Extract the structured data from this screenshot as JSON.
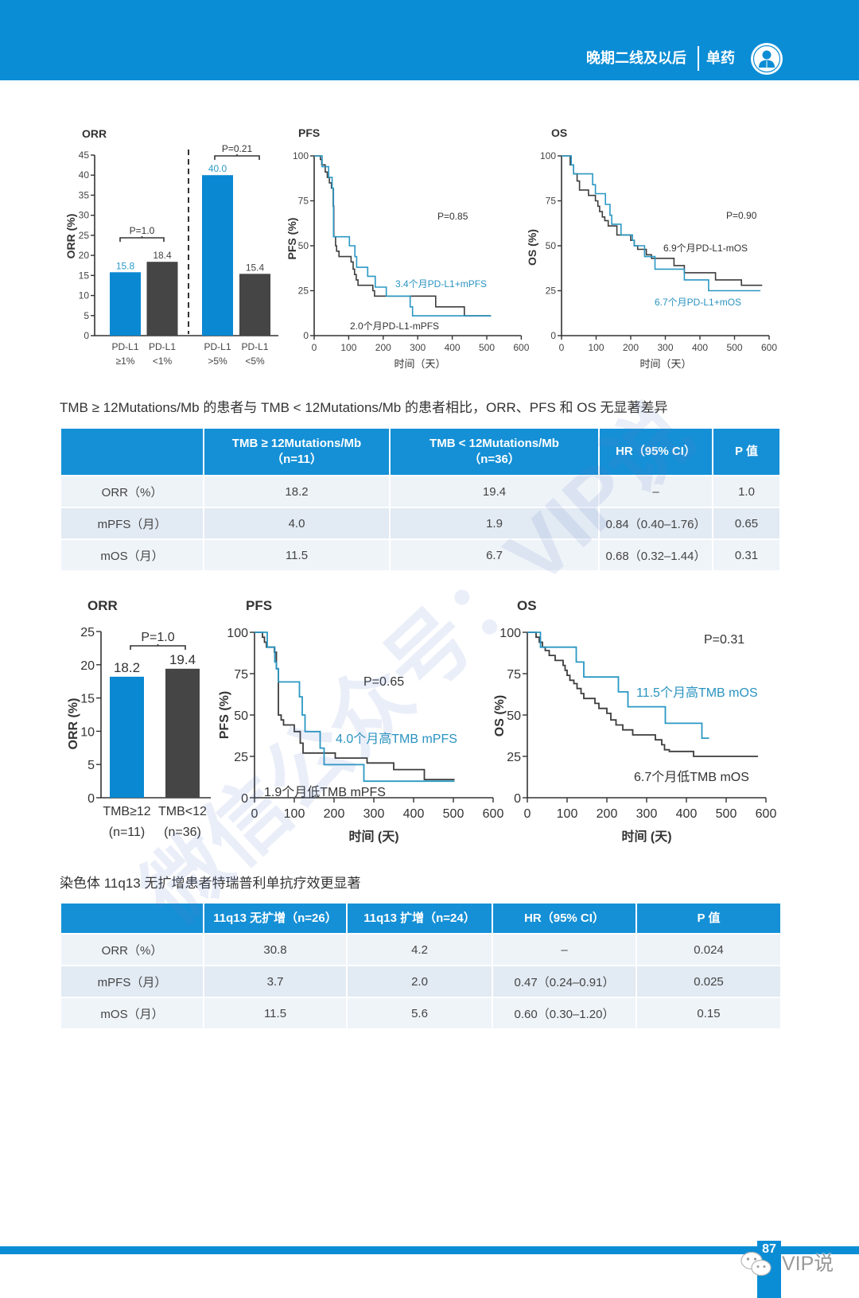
{
  "header": {
    "section": "晚期二线及以后",
    "subsection": "单药",
    "icon": "person-icon",
    "color": "#0b8dd5"
  },
  "chart_data": [
    {
      "type": "bar",
      "title": "ORR",
      "ylabel": "ORR (%)",
      "ylim": [
        0,
        45
      ],
      "yticks": [
        0,
        5,
        10,
        15,
        20,
        25,
        30,
        35,
        40,
        45
      ],
      "categories": [
        [
          "PD-L1",
          "≥1%"
        ],
        [
          "PD-L1",
          "<1%"
        ],
        [
          "PD-L1",
          ">5%"
        ],
        [
          "PD-L1",
          "<5%"
        ]
      ],
      "values": [
        15.8,
        18.4,
        40.0,
        15.4
      ],
      "value_labels": [
        "15.8",
        "18.4",
        "40.0",
        "15.4"
      ],
      "colors": [
        "#0a88d2",
        "#454545",
        "#0a88d2",
        "#454545"
      ],
      "value_label_colors": [
        "#2a9ac8",
        "#444444",
        "#2a9ac8",
        "#444444"
      ],
      "comparisons": [
        {
          "bars": [
            0,
            1
          ],
          "label": "P=1.0"
        },
        {
          "bars": [
            2,
            3
          ],
          "label": "P=0.21"
        }
      ],
      "grid": false
    },
    {
      "type": "line",
      "step": true,
      "title": "PFS",
      "ylabel": "PFS (%)",
      "xlabel": "时间（天）",
      "xlim": [
        0,
        600
      ],
      "ylim": [
        0,
        100
      ],
      "xticks": [
        0,
        100,
        200,
        300,
        400,
        500,
        600
      ],
      "yticks": [
        0,
        25,
        50,
        75,
        100
      ],
      "grid": false,
      "series": [
        {
          "color": "#3d3d3d",
          "x": [
            0,
            18,
            22,
            32,
            38,
            44,
            50,
            55,
            57,
            62,
            65,
            72,
            107,
            113,
            117,
            122,
            127,
            170,
            175,
            352,
            435,
            512
          ],
          "y": [
            100,
            98,
            95,
            91,
            88,
            85,
            82,
            72,
            55,
            50,
            47,
            44,
            41,
            37,
            34,
            31,
            28,
            25,
            22,
            16,
            11,
            11
          ]
        },
        {
          "color": "#2a98c4",
          "x": [
            0,
            23,
            42,
            52,
            56,
            102,
            118,
            123,
            155,
            177,
            209,
            278,
            285,
            512
          ],
          "y": [
            100,
            94,
            88,
            82,
            55,
            50,
            44,
            38,
            33,
            27,
            22,
            16,
            11,
            11
          ]
        }
      ],
      "annotations": [
        {
          "text": "P=0.85",
          "color": "#333333"
        },
        {
          "text": "3.4个月PD-L1+mPFS",
          "color": "#2a93c0"
        },
        {
          "text": "2.0个月PD-L1-mPFS",
          "color": "#333333"
        }
      ]
    },
    {
      "type": "line",
      "step": true,
      "title": "OS",
      "ylabel": "OS (%)",
      "xlabel": "时间（天）",
      "xlim": [
        0,
        600
      ],
      "ylim": [
        0,
        100
      ],
      "xticks": [
        0,
        100,
        200,
        300,
        400,
        500,
        600
      ],
      "yticks": [
        0,
        25,
        50,
        75,
        100
      ],
      "grid": false,
      "series": [
        {
          "color": "#3d3d3d",
          "x": [
            0,
            25,
            35,
            45,
            52,
            78,
            98,
            105,
            110,
            118,
            125,
            135,
            160,
            200,
            210,
            220,
            245,
            260,
            325,
            355,
            445,
            520,
            580
          ],
          "y": [
            100,
            95,
            90,
            86,
            81,
            78,
            75,
            72,
            69,
            66,
            64,
            61,
            56,
            53,
            50,
            48,
            45,
            43,
            39,
            35,
            31,
            28,
            28
          ]
        },
        {
          "color": "#2a98c4",
          "x": [
            0,
            28,
            35,
            90,
            98,
            127,
            140,
            145,
            172,
            205,
            210,
            240,
            270,
            355,
            425,
            575
          ],
          "y": [
            100,
            95,
            90,
            84,
            79,
            73,
            67,
            62,
            56,
            53,
            50,
            44,
            37,
            31,
            25,
            25
          ]
        }
      ],
      "annotations": [
        {
          "text": "P=0.90",
          "color": "#333333"
        },
        {
          "text": "6.9个月PD-L1-mOS",
          "color": "#333333"
        },
        {
          "text": "6.7个月PD-L1+mOS",
          "color": "#2a93c0"
        }
      ]
    },
    {
      "type": "bar",
      "title": "ORR",
      "ylabel": "ORR (%)",
      "ylim": [
        0,
        25
      ],
      "yticks": [
        0,
        5,
        10,
        15,
        20,
        25
      ],
      "categories": [
        [
          "TMB≥12",
          "(n=11)"
        ],
        [
          "TMB<12",
          "(n=36)"
        ]
      ],
      "values": [
        18.2,
        19.4
      ],
      "value_labels": [
        "18.2",
        "19.4"
      ],
      "colors": [
        "#0a88d2",
        "#454545"
      ],
      "value_label_colors": [
        "#333333",
        "#333333"
      ],
      "comparisons": [
        {
          "bars": [
            0,
            1
          ],
          "label": "P=1.0"
        }
      ],
      "grid": false
    },
    {
      "type": "line",
      "step": true,
      "title": "PFS",
      "ylabel": "PFS (%)",
      "xlabel": "时间 (天)",
      "xlim": [
        0,
        600
      ],
      "ylim": [
        0,
        100
      ],
      "xticks": [
        0,
        100,
        200,
        300,
        400,
        500,
        600
      ],
      "yticks": [
        0,
        25,
        50,
        75,
        100
      ],
      "grid": false,
      "series": [
        {
          "color": "#3d3d3d",
          "x": [
            0,
            20,
            25,
            30,
            50,
            55,
            60,
            67,
            73,
            100,
            115,
            122,
            203,
            283,
            350,
            427,
            503
          ],
          "y": [
            100,
            97,
            94,
            91,
            88,
            78,
            50,
            47,
            44,
            40,
            33,
            27,
            24,
            21,
            17,
            11,
            11
          ]
        },
        {
          "color": "#2a98c4",
          "x": [
            0,
            32,
            51,
            55,
            60,
            113,
            120,
            127,
            165,
            175,
            275,
            503
          ],
          "y": [
            100,
            91,
            82,
            78,
            70,
            61,
            50,
            40,
            30,
            20,
            10,
            10
          ]
        }
      ],
      "annotations": [
        {
          "text": "P=0.65",
          "color": "#333333"
        },
        {
          "text": "4.0个月高TMB mPFS",
          "color": "#2a93c0"
        },
        {
          "text": "1.9个月低TMB mPFS",
          "color": "#333333"
        }
      ]
    },
    {
      "type": "line",
      "step": true,
      "title": "OS",
      "ylabel": "OS (%)",
      "xlabel": "时间 (天)",
      "xlim": [
        0,
        600
      ],
      "ylim": [
        0,
        100
      ],
      "xticks": [
        0,
        100,
        200,
        300,
        400,
        500,
        600
      ],
      "yticks": [
        0,
        25,
        50,
        75,
        100
      ],
      "grid": false,
      "series": [
        {
          "color": "#3d3d3d",
          "x": [
            0,
            22,
            30,
            38,
            45,
            55,
            70,
            90,
            95,
            100,
            107,
            117,
            125,
            135,
            142,
            170,
            180,
            200,
            210,
            223,
            240,
            265,
            322,
            338,
            345,
            357,
            418,
            580
          ],
          "y": [
            100,
            97,
            94,
            91,
            89,
            86,
            83,
            80,
            77,
            74,
            71,
            69,
            66,
            63,
            60,
            57,
            54,
            51,
            47,
            44,
            41,
            38,
            35,
            32,
            29,
            28,
            25,
            25
          ]
        },
        {
          "color": "#2a98c4",
          "x": [
            0,
            33,
            123,
            142,
            229,
            253,
            347,
            439,
            457
          ],
          "y": [
            100,
            91,
            82,
            73,
            64,
            55,
            45,
            36,
            36
          ]
        }
      ],
      "annotations": [
        {
          "text": "P=0.31",
          "color": "#333333"
        },
        {
          "text": "11.5个月高TMB mOS",
          "color": "#2a93c0"
        },
        {
          "text": "6.7个月低TMB mOS",
          "color": "#333333"
        }
      ]
    }
  ],
  "tmb_section": {
    "caption": "TMB ≥ 12Mutations/Mb 的患者与 TMB < 12Mutations/Mb 的患者相比，ORR、PFS 和 OS 无显著差异",
    "table": {
      "headers": [
        [
          "TMB ≥ 12Mutations/Mb",
          "（n=11）"
        ],
        [
          "TMB < 12Mutations/Mb",
          "（n=36）"
        ],
        [
          "HR（95% CI）"
        ],
        [
          "P 值"
        ]
      ],
      "rows": [
        {
          "label": "ORR（%）",
          "cells": [
            "18.2",
            "19.4",
            "–",
            "1.0"
          ]
        },
        {
          "label": "mPFS（月）",
          "cells": [
            "4.0",
            "1.9",
            "0.84（0.40–1.76）",
            "0.65"
          ]
        },
        {
          "label": "mOS（月）",
          "cells": [
            "11.5",
            "6.7",
            "0.68（0.32–1.44）",
            "0.31"
          ]
        }
      ]
    }
  },
  "q13_section": {
    "caption": "染色体 11q13 无扩增患者特瑞普利单抗疗效更显著",
    "table": {
      "headers": [
        "11q13 无扩增（n=26）",
        "11q13 扩增（n=24）",
        "HR（95% CI）",
        "P 值"
      ],
      "rows": [
        {
          "label": "ORR（%）",
          "cells": [
            "30.8",
            "4.2",
            "–",
            "0.024"
          ]
        },
        {
          "label": "mPFS（月）",
          "cells": [
            "3.7",
            "2.0",
            "0.47（0.24–0.91）",
            "0.025"
          ]
        },
        {
          "label": "mOS（月）",
          "cells": [
            "11.5",
            "5.6",
            "0.60（0.30–1.20）",
            "0.15"
          ]
        }
      ]
    }
  },
  "footer": {
    "page_number": "87",
    "watermark": "VIP说",
    "wechat_icon": "wechat-icon"
  },
  "watermark": {
    "text": "微信公众号：VIP说"
  }
}
